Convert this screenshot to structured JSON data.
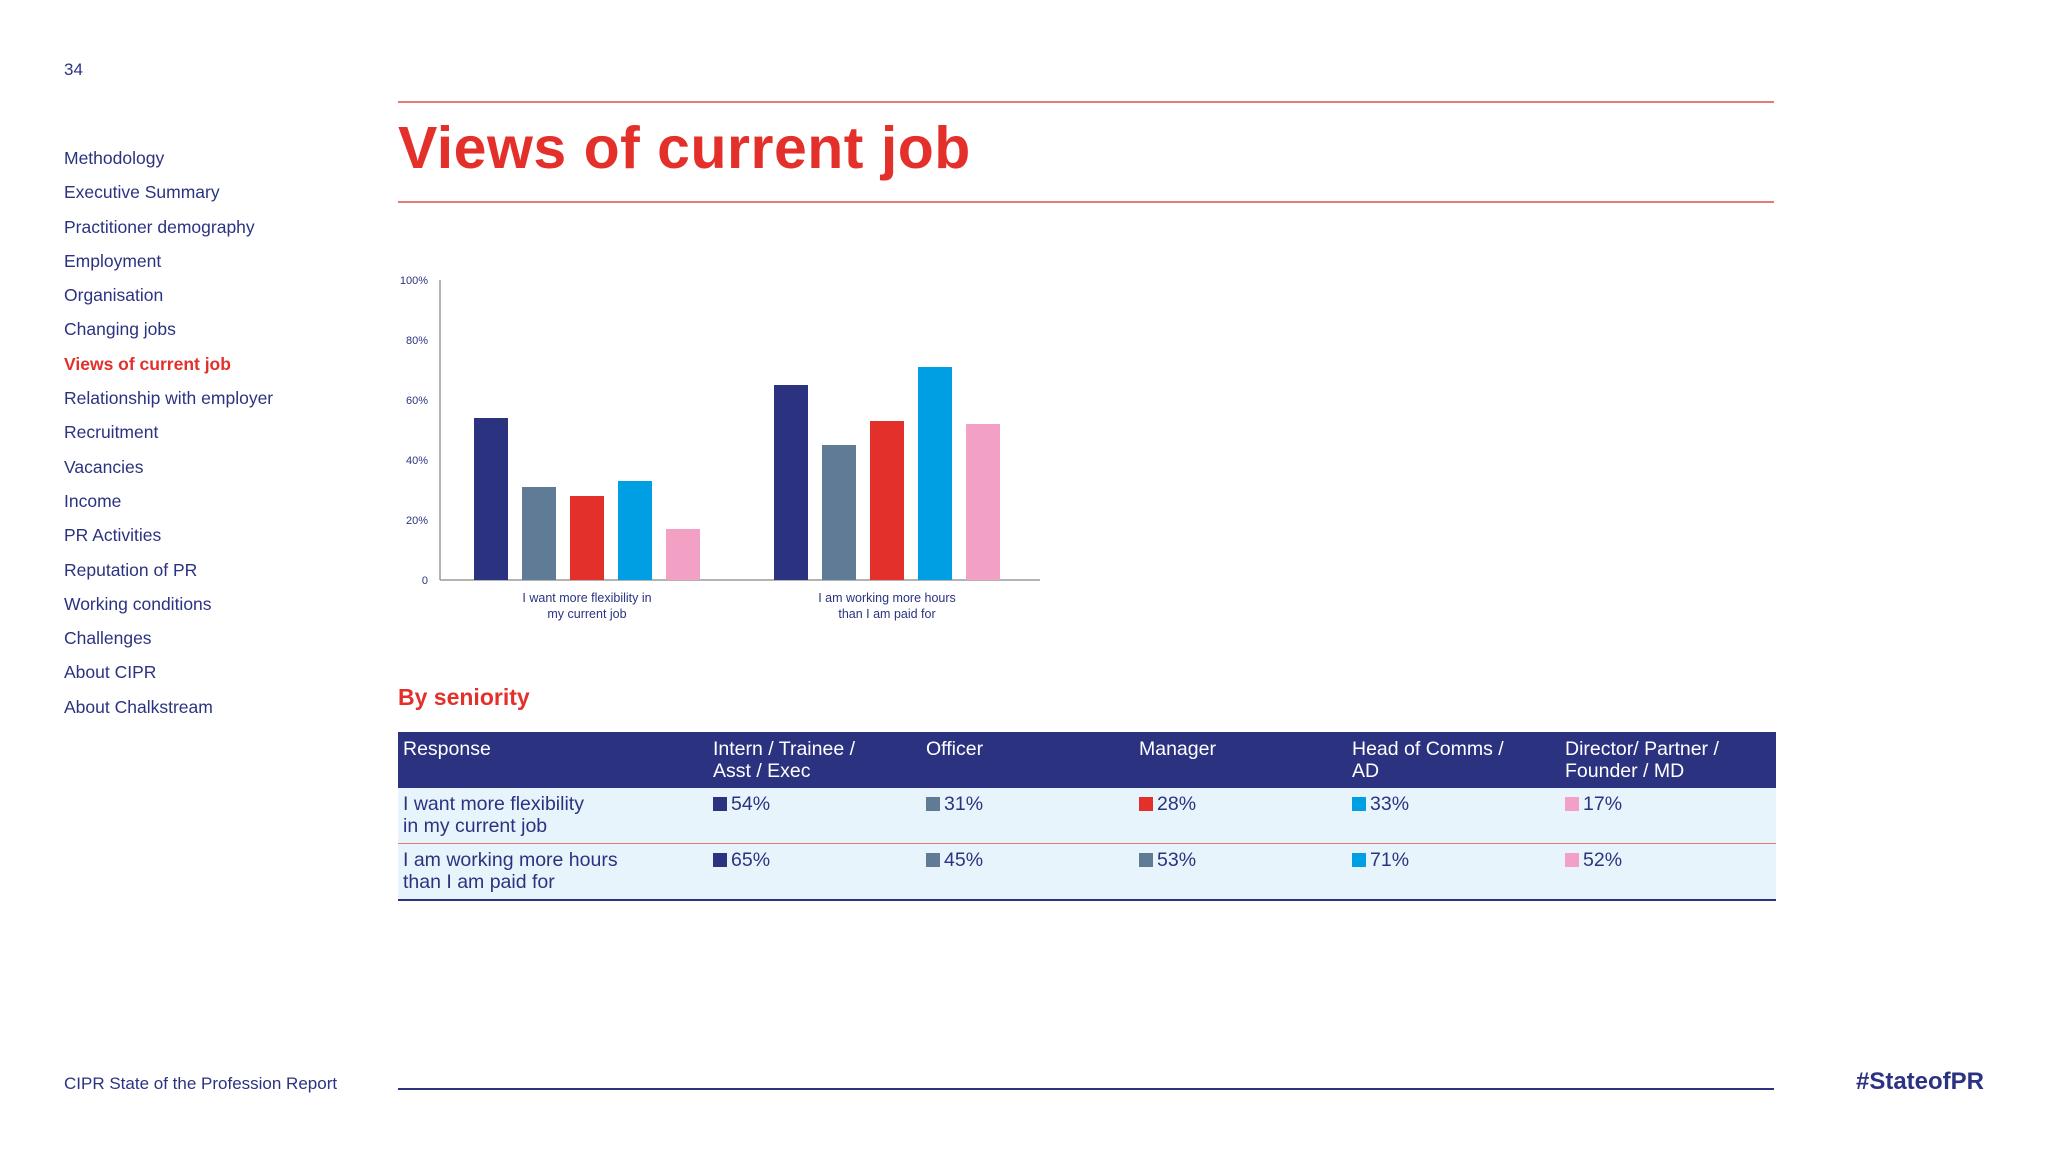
{
  "page_number": "34",
  "sidebar": {
    "items": [
      {
        "label": "Methodology"
      },
      {
        "label": "Executive Summary"
      },
      {
        "label": "Practitioner demography"
      },
      {
        "label": "Employment"
      },
      {
        "label": "Organisation"
      },
      {
        "label": "Changing jobs"
      },
      {
        "label": "Views of current job",
        "active": true
      },
      {
        "label": "Relationship with employer"
      },
      {
        "label": "Recruitment"
      },
      {
        "label": "Vacancies"
      },
      {
        "label": "Income"
      },
      {
        "label": "PR Activities"
      },
      {
        "label": "Reputation of PR"
      },
      {
        "label": "Working conditions"
      },
      {
        "label": "Challenges"
      },
      {
        "label": "About CIPR"
      },
      {
        "label": "About Chalkstream"
      }
    ]
  },
  "title": "Views of current job",
  "colors": {
    "accent": "#e3302a",
    "navy": "#2b3380",
    "table_row_bg": "#e8f4fb"
  },
  "chart_data": {
    "type": "bar",
    "categories": [
      [
        "I want more flexibility in",
        "my current job"
      ],
      [
        "I am working more hours",
        "than I am paid for"
      ]
    ],
    "series": [
      {
        "color": "#2b3380",
        "values": [
          54,
          65
        ]
      },
      {
        "color": "#5f7b95",
        "values": [
          31,
          45
        ]
      },
      {
        "color": "#e3302a",
        "values": [
          28,
          53
        ]
      },
      {
        "color": "#009fe3",
        "values": [
          33,
          71
        ]
      },
      {
        "color": "#f2a0c4",
        "values": [
          17,
          52
        ]
      }
    ],
    "ylim": [
      0,
      100
    ],
    "yticks": [
      "0",
      "20%",
      "40%",
      "60%",
      "80%",
      "100%"
    ],
    "legend": "none",
    "grid": false
  },
  "seniority": {
    "heading": "By seniority",
    "columns": [
      [
        "Response"
      ],
      [
        "Intern / Trainee /",
        "Asst / Exec"
      ],
      [
        "Officer"
      ],
      [
        "Manager"
      ],
      [
        "Head of Comms /",
        "AD"
      ],
      [
        "Director/ Partner /",
        "Founder / MD"
      ]
    ],
    "rows": [
      {
        "label": [
          "I want more flexibility",
          "in my current job"
        ],
        "cells": [
          {
            "value": "54%",
            "color": "#2b3380"
          },
          {
            "value": "31%",
            "color": "#5f7b95"
          },
          {
            "value": "28%",
            "color": "#e3302a"
          },
          {
            "value": "33%",
            "color": "#009fe3"
          },
          {
            "value": "17%",
            "color": "#f2a0c4"
          }
        ]
      },
      {
        "label": [
          "I am working more hours",
          "than I am paid for"
        ],
        "cells": [
          {
            "value": "65%",
            "color": "#2b3380"
          },
          {
            "value": "45%",
            "color": "#5f7b95"
          },
          {
            "value": "53%",
            "color": "#5f7b95"
          },
          {
            "value": "71%",
            "color": "#009fe3"
          },
          {
            "value": "52%",
            "color": "#f2a0c4"
          }
        ]
      }
    ]
  },
  "footer": {
    "report_name": "CIPR State of the Profession Report",
    "hashtag": "#StateofPR"
  }
}
